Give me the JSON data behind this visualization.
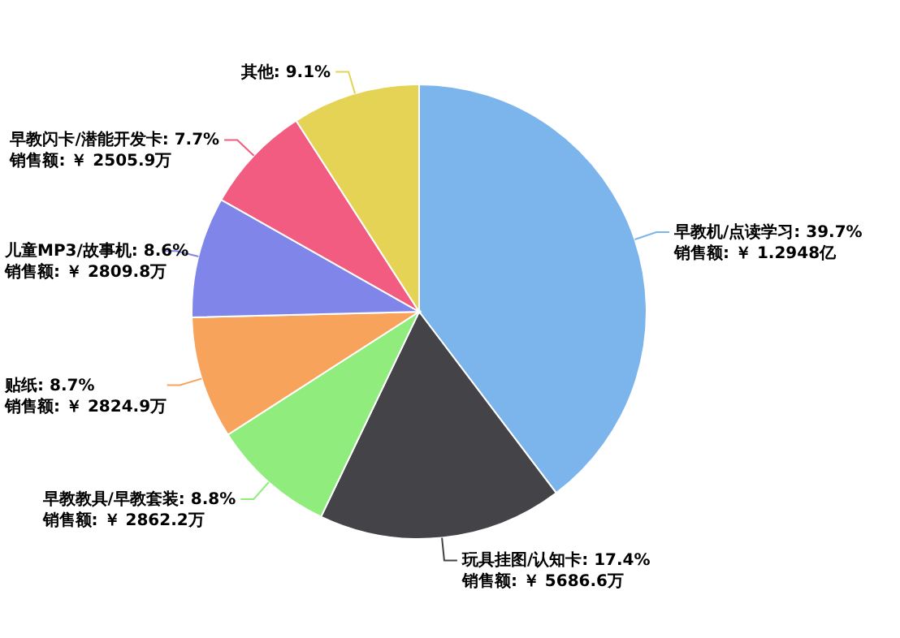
{
  "chart_data": {
    "type": "pie",
    "categories": [
      "早教机/点读学习",
      "玩具挂图/认知卡",
      "早教教具/早教套装",
      "贴纸",
      "儿童MP3/故事机",
      "早教闪卡/潜能开发卡",
      "其他"
    ],
    "values": [
      39.7,
      17.4,
      8.8,
      8.7,
      8.6,
      7.7,
      9.1
    ],
    "value_labels": [
      "39.7%\n销售额: ￥ 1.2948亿",
      "17.4%\n销售额: ￥ 5686.6万",
      "8.8%\n销售额: ￥ 2862.2万",
      "8.7%\n销售额: ￥ 2824.9万",
      "8.6%\n销售额: ￥ 2809.8万",
      "7.7%\n销售额: ￥ 2505.9万",
      "9.1%"
    ],
    "colors": [
      "#7cb5ec",
      "#434348",
      "#90ed7d",
      "#f7a35c",
      "#8085e9",
      "#f15c80",
      "#e4d354"
    ]
  }
}
